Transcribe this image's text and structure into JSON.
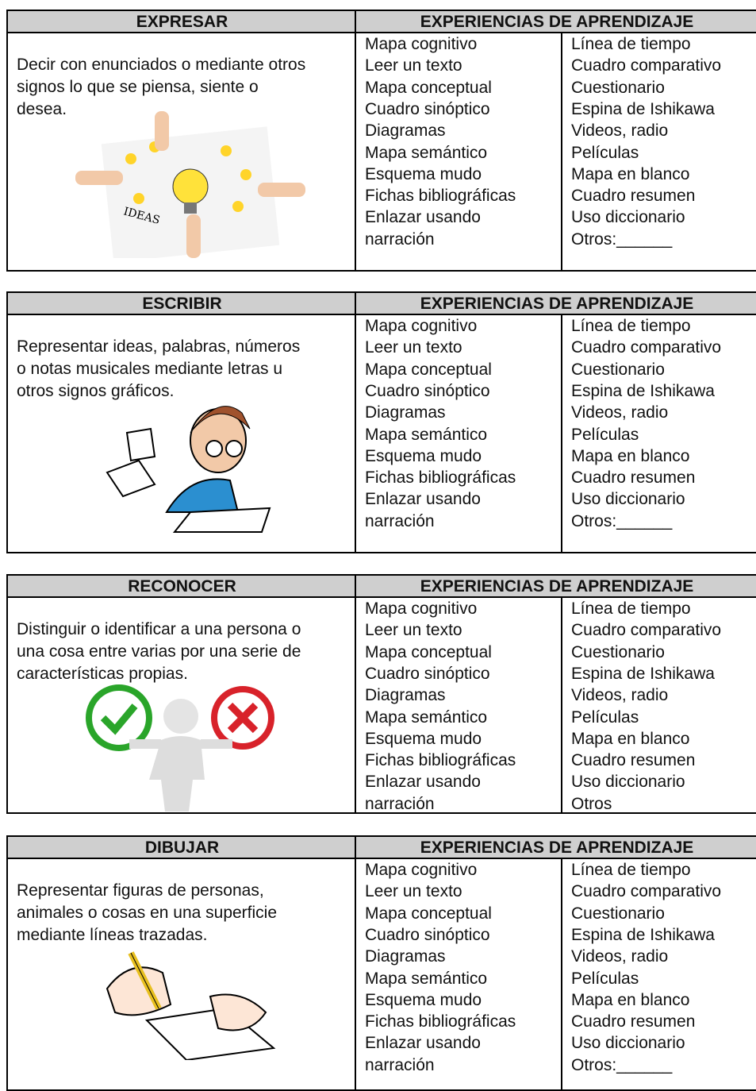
{
  "tables": [
    {
      "verb": "EXPRESAR",
      "experiences_header": "EXPERIENCIAS DE APRENDIZAJE",
      "description": [
        "Decir con enunciados o mediante otros",
        "signos lo que se piensa, siente o",
        "desea."
      ],
      "col1": [
        "Mapa cognitivo",
        "Leer un texto",
        "Mapa conceptual",
        "Cuadro sinóptico",
        "Diagramas",
        "Mapa semántico",
        "Esquema mudo",
        "Fichas bibliográficas",
        "Enlazar usando",
        "narración"
      ],
      "col2": [
        "Línea de tiempo",
        "Cuadro comparativo",
        "Cuestionario",
        "Espina de Ishikawa",
        "Videos, radio",
        "Películas",
        "Mapa en blanco",
        "Cuadro resumen",
        "Uso diccionario",
        "Otros:______"
      ]
    },
    {
      "verb": "ESCRIBIR",
      "experiences_header": "EXPERIENCIAS DE APRENDIZAJE",
      "description": [
        "Representar ideas, palabras, números",
        "o notas musicales mediante letras u",
        "otros signos gráficos."
      ],
      "col1": [
        "Mapa cognitivo",
        "Leer un texto",
        "Mapa conceptual",
        "Cuadro sinóptico",
        "Diagramas",
        "Mapa semántico",
        "Esquema mudo",
        "Fichas bibliográficas",
        "Enlazar usando",
        "narración"
      ],
      "col2": [
        "Línea de tiempo",
        "Cuadro comparativo",
        "Cuestionario",
        "Espina de Ishikawa",
        "Videos, radio",
        "Películas",
        "Mapa en blanco",
        "Cuadro resumen",
        "Uso diccionario",
        "Otros:______"
      ]
    },
    {
      "verb": "RECONOCER",
      "experiences_header": "EXPERIENCIAS DE APRENDIZAJE",
      "description": [
        "Distinguir o identificar a una persona o",
        "una cosa entre varias por una serie de",
        "características propias."
      ],
      "col1": [
        "Mapa cognitivo",
        "Leer un texto",
        "Mapa conceptual",
        "Cuadro sinóptico",
        "Diagramas",
        "Mapa semántico",
        "Esquema mudo",
        "Fichas bibliográficas",
        "Enlazar usando",
        "narración"
      ],
      "col2": [
        "Línea de tiempo",
        "Cuadro comparativo",
        "Cuestionario",
        "Espina de Ishikawa",
        "Videos, radio",
        "Películas",
        "Mapa en blanco",
        "Cuadro resumen",
        "Uso diccionario",
        "Otros"
      ]
    },
    {
      "verb": "DIBUJAR",
      "experiences_header": "EXPERIENCIAS DE APRENDIZAJE",
      "description": [
        "Representar figuras de personas,",
        "animales o cosas en una superficie",
        "mediante líneas trazadas."
      ],
      "col1": [
        "Mapa cognitivo",
        "Leer un texto",
        "Mapa conceptual",
        "Cuadro sinóptico",
        "Diagramas",
        "Mapa semántico",
        "Esquema mudo",
        "Fichas bibliográficas",
        "Enlazar usando",
        "narración"
      ],
      "col2": [
        "Línea de tiempo",
        "Cuadro comparativo",
        "Cuestionario",
        "Espina de Ishikawa",
        "Videos, radio",
        "Películas",
        "Mapa en blanco",
        "Cuadro resumen",
        "Uso diccionario",
        "Otros:______"
      ]
    }
  ]
}
